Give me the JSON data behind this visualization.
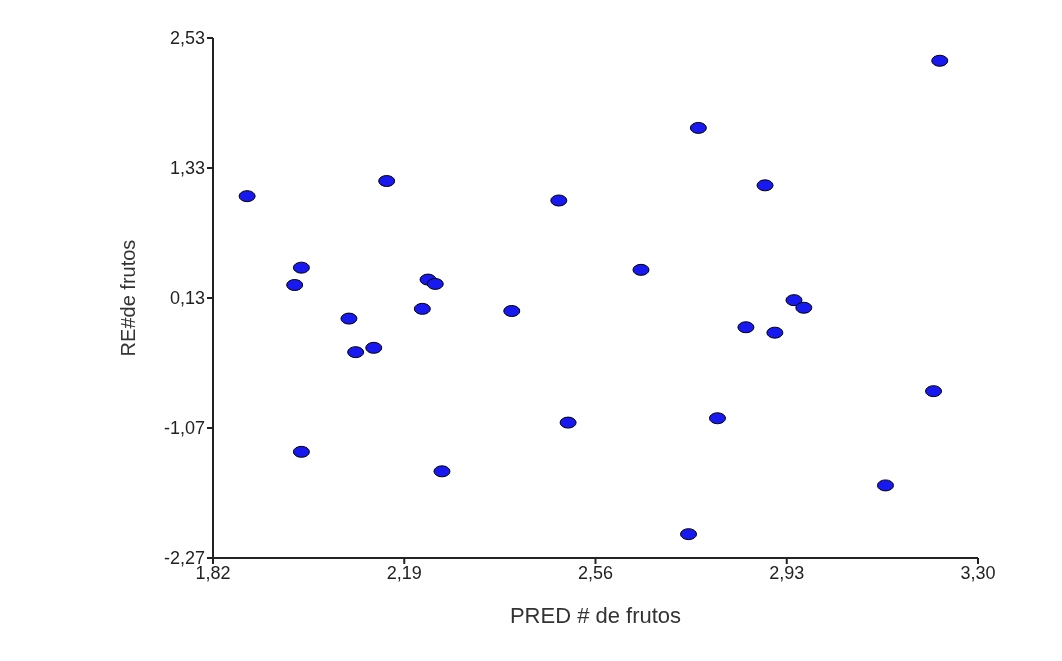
{
  "chart_data": {
    "type": "scatter",
    "xlabel": "PRED # de frutos",
    "ylabel": "RE#de frutos",
    "x": [
      1.886,
      1.991,
      1.978,
      1.991,
      2.083,
      2.096,
      2.131,
      2.156,
      2.225,
      2.236,
      2.25,
      2.263,
      2.398,
      2.489,
      2.507,
      2.648,
      2.74,
      2.759,
      2.796,
      2.851,
      2.888,
      2.907,
      2.944,
      2.963,
      3.121,
      3.214,
      3.226
    ],
    "series": [
      {
        "color": "#1818f0",
        "values": [
          1.07,
          0.41,
          0.25,
          -1.29,
          -0.06,
          -0.37,
          -0.33,
          1.21,
          0.03,
          0.3,
          0.26,
          -1.47,
          0.01,
          1.03,
          -1.02,
          0.39,
          -2.05,
          1.7,
          -0.98,
          -0.14,
          1.17,
          -0.19,
          0.11,
          0.04,
          -1.6,
          -0.73,
          2.32
        ]
      }
    ],
    "xlim": [
      1.82,
      3.3
    ],
    "ylim": [
      -2.27,
      2.53
    ],
    "xticks": [
      {
        "value": 1.82,
        "label": "1,82"
      },
      {
        "value": 2.19,
        "label": "2,19"
      },
      {
        "value": 2.56,
        "label": "2,56"
      },
      {
        "value": 2.93,
        "label": "2,93"
      },
      {
        "value": 3.3,
        "label": "3,30"
      }
    ],
    "yticks": [
      {
        "value": -2.27,
        "label": "-2,27"
      },
      {
        "value": -1.07,
        "label": "-1,07"
      },
      {
        "value": 0.13,
        "label": "0,13"
      },
      {
        "value": 1.33,
        "label": "1,33"
      },
      {
        "value": 2.53,
        "label": "2,53"
      }
    ],
    "grid": false,
    "legend": false,
    "marker": "circle"
  }
}
